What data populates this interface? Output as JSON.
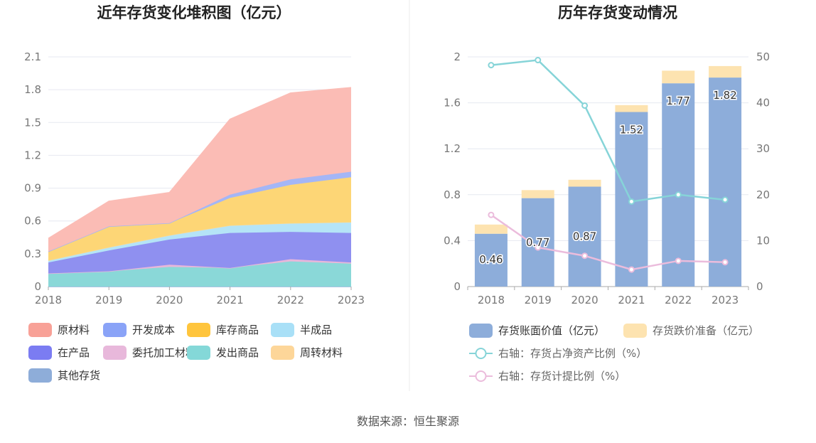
{
  "footer": {
    "source": "数据来源：恒生聚源"
  },
  "chart_data": [
    {
      "type": "area",
      "stacked": true,
      "title": "近年存货变化堆积图（亿元）",
      "x": [
        "2018",
        "2019",
        "2020",
        "2021",
        "2022",
        "2023"
      ],
      "ylim": [
        0,
        2.1
      ],
      "yticks": [
        "0",
        "0.3",
        "0.6",
        "0.9",
        "1.2",
        "1.5",
        "1.8",
        "2.1"
      ],
      "grid": true,
      "legend_position": "bottom",
      "series": [
        {
          "name": "其他存货",
          "color": "#8eadd9",
          "values": [
            0,
            0,
            0,
            0,
            0,
            0
          ]
        },
        {
          "name": "发出商品",
          "color": "#8ad8d8",
          "values": [
            0.12,
            0.14,
            0.18,
            0.17,
            0.23,
            0.21
          ]
        },
        {
          "name": "委托加工材料",
          "color": "#e8b7da",
          "values": [
            0.0,
            0.0,
            0.02,
            0.0,
            0.02,
            0.01
          ]
        },
        {
          "name": "在产品",
          "color": "#8f90f0",
          "values": [
            0.1,
            0.19,
            0.23,
            0.32,
            0.25,
            0.27
          ]
        },
        {
          "name": "半成品",
          "color": "#b5e4f7",
          "values": [
            0.02,
            0.03,
            0.04,
            0.07,
            0.08,
            0.1
          ]
        },
        {
          "name": "周转材料",
          "color": "#fcd98f",
          "values": [
            0,
            0,
            0,
            0,
            0,
            0
          ]
        },
        {
          "name": "库存商品",
          "color": "#fdd676",
          "values": [
            0.08,
            0.19,
            0.11,
            0.25,
            0.35,
            0.41
          ]
        },
        {
          "name": "开发成本",
          "color": "#a4b6f6",
          "values": [
            0,
            0,
            0,
            0.03,
            0.05,
            0.05
          ]
        },
        {
          "name": "原材料",
          "color": "#fbbcb5",
          "values": [
            0.12,
            0.23,
            0.28,
            0.69,
            0.79,
            0.77
          ]
        }
      ],
      "legend": [
        {
          "name": "原材料",
          "color": "#f8a197"
        },
        {
          "name": "开发成本",
          "color": "#8aa3f7"
        },
        {
          "name": "库存商品",
          "color": "#ffc53d"
        },
        {
          "name": "半成品",
          "color": "#a9e0f7"
        },
        {
          "name": "在产品",
          "color": "#7b7cf2"
        },
        {
          "name": "委托加工材料",
          "color": "#e8b8db"
        },
        {
          "name": "发出商品",
          "color": "#84d8d8"
        },
        {
          "name": "周转材料",
          "color": "#fdd699"
        },
        {
          "name": "其他存货",
          "color": "#8eadd9"
        }
      ]
    },
    {
      "type": "bar",
      "stacked": true,
      "title": "历年存货变动情况",
      "categories": [
        "2018",
        "2019",
        "2020",
        "2021",
        "2022",
        "2023"
      ],
      "ylim": [
        0,
        2
      ],
      "yticks": [
        "0",
        "0.4",
        "0.8",
        "1.2",
        "1.6",
        "2"
      ],
      "y2lim": [
        0,
        50
      ],
      "y2ticks": [
        "0",
        "10",
        "20",
        "30",
        "40",
        "50"
      ],
      "grid": true,
      "legend_position": "bottom",
      "series": [
        {
          "name": "存货账面价值（亿元）",
          "type": "bar",
          "axis": "left",
          "color": "#8dadda",
          "values": [
            0.46,
            0.77,
            0.87,
            1.52,
            1.77,
            1.82
          ],
          "labels": [
            "0.46",
            "0.77",
            "0.87",
            "1.52",
            "1.77",
            "1.82"
          ]
        },
        {
          "name": "存货跌价准备（亿元）",
          "type": "bar",
          "axis": "left",
          "color": "#fde3b0",
          "values": [
            0.08,
            0.07,
            0.06,
            0.06,
            0.11,
            0.1
          ]
        },
        {
          "name": "右轴：存货占净资产比例（%）",
          "type": "line",
          "axis": "right",
          "color": "#86d4d8",
          "values": [
            48.2,
            49.3,
            39.4,
            18.5,
            20,
            18.9
          ]
        },
        {
          "name": "右轴：存货计提比例（%）",
          "type": "line",
          "axis": "right",
          "color": "#ebbcdc",
          "values": [
            15.6,
            8.5,
            6.7,
            3.7,
            5.6,
            5.3
          ]
        }
      ]
    }
  ]
}
